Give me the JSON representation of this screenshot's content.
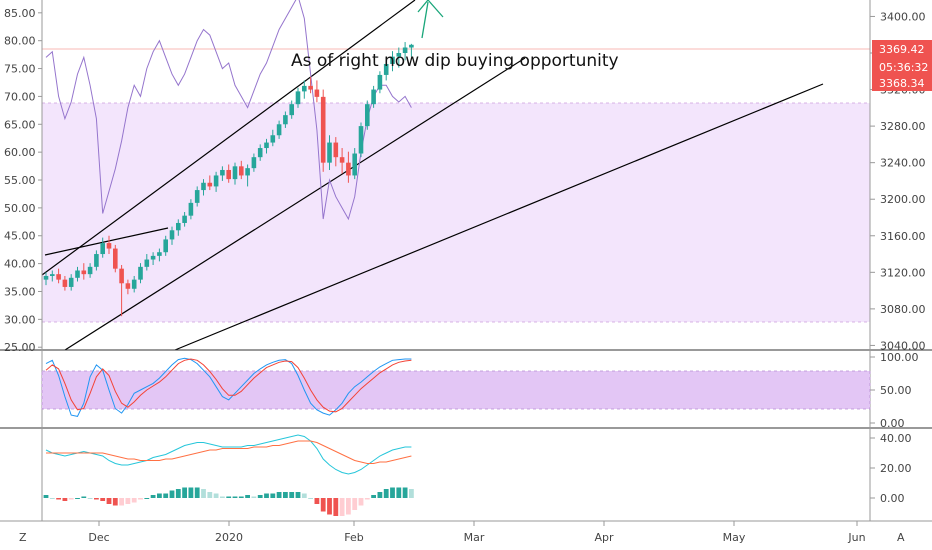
{
  "toolbar": {
    "left_button": "Z",
    "right_button": "A"
  },
  "annotation": "As of right now dip buying opportunity",
  "price_labels": {
    "last": "3369.42",
    "countdown": "05:36:32",
    "low": "3368.34"
  },
  "colors": {
    "up": "#26a69a",
    "down": "#ef5350",
    "band": "#e1bee7",
    "stoch_k": "#2196f3",
    "stoch_d": "#f44336",
    "rsi": "#9575cd",
    "macd_line": "#26c6da",
    "signal_line": "#ff7043"
  },
  "chart_data": [
    {
      "type": "candlestick",
      "panel": "price",
      "right_axis": {
        "ticks": [
          "3400.00",
          "3360.00",
          "3320.00",
          "3280.00",
          "3240.00",
          "3200.00",
          "3160.00",
          "3120.00",
          "3080.00",
          "3040.00"
        ],
        "range": [
          3035,
          3418
        ]
      },
      "left_axis": {
        "ticks": [
          "85.00",
          "80.00",
          "75.00",
          "70.00",
          "65.00",
          "60.00",
          "55.00",
          "50.00",
          "45.00",
          "40.00",
          "35.00",
          "30.00",
          "25.00"
        ],
        "range": [
          24.5,
          87.3
        ]
      },
      "x_ticks": [
        "Dec",
        "2020",
        "Feb",
        "Mar",
        "Apr",
        "May",
        "Jun"
      ],
      "candles": [
        [
          3112,
          3120,
          3106,
          3116
        ],
        [
          3116,
          3122,
          3110,
          3118
        ],
        [
          3118,
          3124,
          3108,
          3112
        ],
        [
          3112,
          3116,
          3100,
          3104
        ],
        [
          3104,
          3118,
          3100,
          3114
        ],
        [
          3114,
          3126,
          3110,
          3122
        ],
        [
          3122,
          3130,
          3112,
          3118
        ],
        [
          3118,
          3130,
          3114,
          3126
        ],
        [
          3126,
          3144,
          3122,
          3140
        ],
        [
          3140,
          3158,
          3136,
          3152
        ],
        [
          3152,
          3160,
          3140,
          3146
        ],
        [
          3146,
          3150,
          3120,
          3124
        ],
        [
          3124,
          3128,
          3072,
          3108
        ],
        [
          3108,
          3112,
          3096,
          3102
        ],
        [
          3102,
          3116,
          3098,
          3112
        ],
        [
          3112,
          3130,
          3108,
          3126
        ],
        [
          3126,
          3140,
          3122,
          3134
        ],
        [
          3134,
          3142,
          3128,
          3138
        ],
        [
          3138,
          3146,
          3132,
          3142
        ],
        [
          3142,
          3160,
          3138,
          3156
        ],
        [
          3156,
          3170,
          3150,
          3166
        ],
        [
          3166,
          3178,
          3160,
          3174
        ],
        [
          3174,
          3186,
          3170,
          3182
        ],
        [
          3182,
          3200,
          3178,
          3196
        ],
        [
          3196,
          3214,
          3192,
          3210
        ],
        [
          3210,
          3222,
          3204,
          3218
        ],
        [
          3218,
          3226,
          3210,
          3214
        ],
        [
          3214,
          3230,
          3208,
          3226
        ],
        [
          3226,
          3236,
          3220,
          3232
        ],
        [
          3232,
          3238,
          3218,
          3222
        ],
        [
          3222,
          3240,
          3216,
          3236
        ],
        [
          3236,
          3242,
          3222,
          3226
        ],
        [
          3226,
          3238,
          3214,
          3234
        ],
        [
          3234,
          3250,
          3230,
          3246
        ],
        [
          3246,
          3260,
          3242,
          3256
        ],
        [
          3256,
          3266,
          3250,
          3262
        ],
        [
          3262,
          3276,
          3258,
          3270
        ],
        [
          3270,
          3286,
          3266,
          3282
        ],
        [
          3282,
          3296,
          3278,
          3292
        ],
        [
          3292,
          3308,
          3288,
          3304
        ],
        [
          3304,
          3322,
          3300,
          3318
        ],
        [
          3318,
          3330,
          3310,
          3324
        ],
        [
          3324,
          3334,
          3316,
          3320
        ],
        [
          3320,
          3330,
          3306,
          3312
        ],
        [
          3312,
          3320,
          3230,
          3240
        ],
        [
          3240,
          3270,
          3232,
          3262
        ],
        [
          3262,
          3268,
          3236,
          3246
        ],
        [
          3246,
          3256,
          3228,
          3240
        ],
        [
          3240,
          3252,
          3218,
          3226
        ],
        [
          3226,
          3256,
          3222,
          3250
        ],
        [
          3250,
          3284,
          3246,
          3280
        ],
        [
          3280,
          3308,
          3276,
          3304
        ],
        [
          3304,
          3324,
          3300,
          3320
        ],
        [
          3320,
          3340,
          3316,
          3336
        ],
        [
          3336,
          3352,
          3330,
          3348
        ],
        [
          3348,
          3362,
          3340,
          3356
        ],
        [
          3356,
          3366,
          3344,
          3360
        ],
        [
          3360,
          3372,
          3352,
          3366
        ],
        [
          3366,
          3370,
          3356,
          3369
        ]
      ]
    },
    {
      "type": "line",
      "panel": "price-oscillator",
      "name": "",
      "band": [
        30,
        70
      ],
      "values": [
        77,
        78,
        70,
        66,
        69,
        74,
        77,
        72,
        66,
        49,
        53,
        57,
        62,
        68,
        72,
        70,
        75,
        78,
        80,
        77,
        74,
        72,
        74,
        77,
        80,
        82,
        81,
        78,
        75,
        76,
        72,
        70,
        68,
        71,
        74,
        76,
        79,
        82,
        84,
        86,
        88,
        84,
        74,
        64,
        48,
        55,
        52,
        50,
        48,
        52,
        60,
        66,
        70,
        72,
        72,
        70,
        69,
        70,
        68
      ]
    },
    {
      "type": "line",
      "panel": "stochastic",
      "right_axis": {
        "ticks": [
          "100.00",
          "50.00",
          "0.00"
        ]
      },
      "band": [
        20,
        80
      ],
      "series": [
        {
          "name": "",
          "values": [
            90,
            95,
            72,
            40,
            12,
            10,
            30,
            70,
            88,
            80,
            50,
            22,
            15,
            28,
            45,
            50,
            55,
            60,
            68,
            78,
            88,
            96,
            98,
            96,
            90,
            80,
            70,
            55,
            40,
            35,
            45,
            55,
            65,
            75,
            82,
            88,
            92,
            95,
            96,
            90,
            72,
            50,
            30,
            20,
            15,
            12,
            20,
            30,
            45,
            55,
            62,
            70,
            78,
            85,
            90,
            95,
            96,
            97,
            97
          ]
        },
        {
          "name": "",
          "values": [
            80,
            88,
            82,
            60,
            35,
            20,
            22,
            45,
            70,
            82,
            72,
            48,
            30,
            24,
            32,
            42,
            50,
            56,
            62,
            70,
            80,
            90,
            95,
            97,
            95,
            88,
            78,
            66,
            52,
            42,
            42,
            48,
            58,
            68,
            76,
            84,
            88,
            92,
            94,
            93,
            84,
            68,
            50,
            35,
            24,
            18,
            17,
            22,
            32,
            42,
            52,
            60,
            68,
            76,
            82,
            88,
            92,
            94,
            95
          ]
        }
      ]
    },
    {
      "type": "bar+line",
      "panel": "macd",
      "right_axis": {
        "ticks": [
          "40.00",
          "20.00",
          "0.00"
        ]
      },
      "series": [
        {
          "name": "",
          "values": [
            32,
            30,
            29,
            28,
            29,
            30,
            31,
            30,
            29,
            28,
            25,
            23,
            22,
            22,
            23,
            24,
            25,
            27,
            28,
            29,
            31,
            33,
            35,
            36,
            37,
            37,
            36,
            35,
            34,
            34,
            34,
            34,
            35,
            35,
            36,
            37,
            38,
            39,
            40,
            41,
            42,
            41,
            38,
            33,
            26,
            22,
            19,
            17,
            16,
            17,
            19,
            22,
            25,
            28,
            30,
            32,
            33,
            34,
            34
          ]
        },
        {
          "name": "",
          "values": [
            30,
            30,
            30,
            30,
            30,
            30,
            30,
            30,
            30,
            30,
            29,
            28,
            27,
            26,
            26,
            25,
            25,
            25,
            25,
            26,
            26,
            27,
            28,
            29,
            30,
            31,
            32,
            32,
            33,
            33,
            33,
            33,
            33,
            34,
            34,
            34,
            35,
            35,
            36,
            37,
            38,
            38,
            38,
            37,
            35,
            33,
            31,
            29,
            27,
            25,
            24,
            23,
            23,
            24,
            24,
            25,
            26,
            27,
            28
          ]
        },
        {
          "name": "",
          "values": [
            2,
            0,
            -1,
            -2,
            -1,
            0,
            1,
            0,
            -1,
            -2,
            -4,
            -5,
            -5,
            -4,
            -3,
            -1,
            0,
            2,
            3,
            3,
            5,
            6,
            7,
            7,
            7,
            6,
            4,
            3,
            1,
            1,
            1,
            1,
            2,
            1,
            2,
            3,
            3,
            4,
            4,
            4,
            4,
            3,
            0,
            -4,
            -9,
            -11,
            -12,
            -12,
            -11,
            -8,
            -5,
            -1,
            2,
            4,
            6,
            7,
            7,
            7,
            6
          ]
        }
      ]
    }
  ]
}
